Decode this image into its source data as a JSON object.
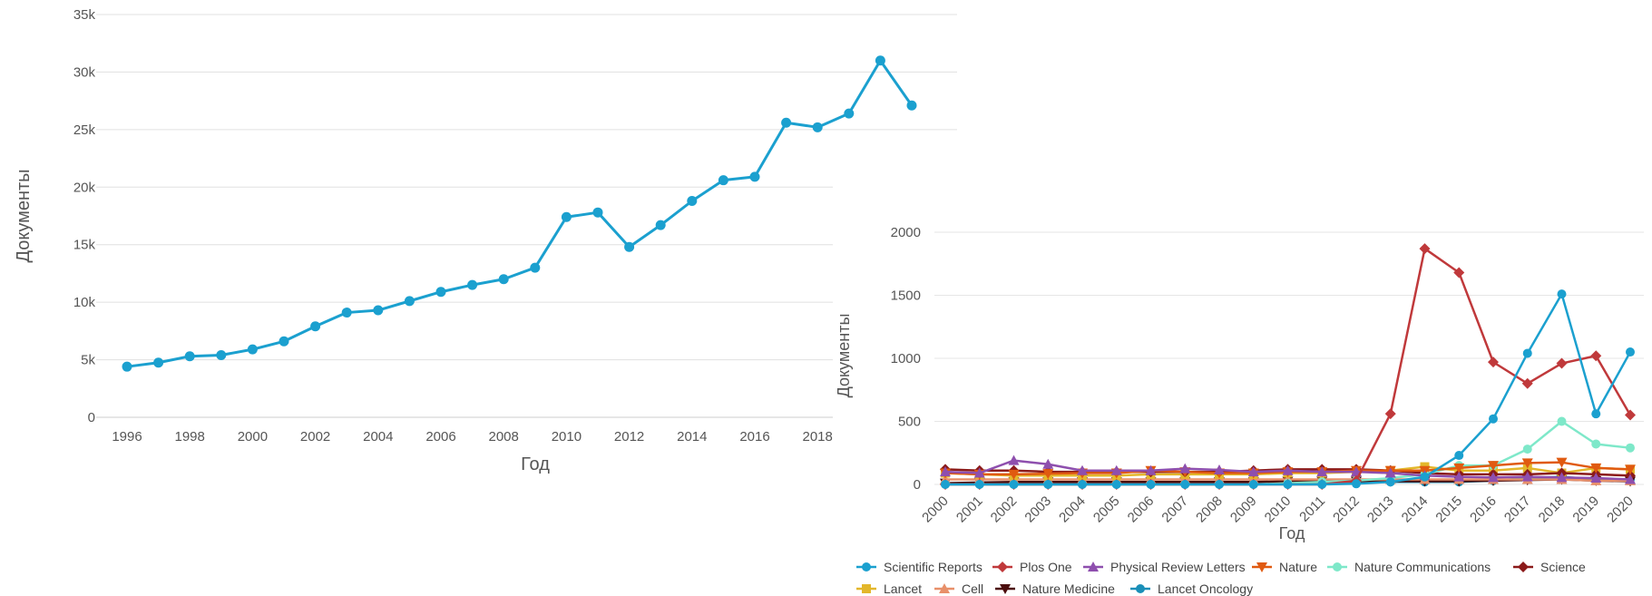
{
  "chart_data": [
    {
      "type": "line",
      "xlabel": "Год",
      "ylabel": "Документы",
      "ylim": [
        0,
        35000
      ],
      "y_ticks": [
        0,
        5000,
        10000,
        15000,
        20000,
        25000,
        30000,
        35000
      ],
      "y_tick_labels": [
        "0",
        "5k",
        "10k",
        "15k",
        "20k",
        "25k",
        "30k",
        "35k"
      ],
      "x_tick_labels": [
        "1996",
        "1998",
        "2000",
        "2002",
        "2004",
        "2006",
        "2008",
        "2010",
        "2012",
        "2014",
        "2016",
        "2018"
      ],
      "grid": true,
      "x": [
        1996,
        1997,
        1998,
        1999,
        2000,
        2001,
        2002,
        2003,
        2004,
        2005,
        2006,
        2007,
        2008,
        2009,
        2010,
        2011,
        2012,
        2013,
        2014,
        2015,
        2016,
        2017,
        2018,
        2019,
        2020
      ],
      "series": [
        {
          "color": "#1ba0cf",
          "values": [
            4400,
            4750,
            5300,
            5400,
            5900,
            6600,
            7900,
            9100,
            9300,
            10100,
            10900,
            11500,
            12000,
            13000,
            17400,
            17800,
            14800,
            16700,
            18800,
            20600,
            20900,
            25600,
            25200,
            26400,
            31000
          ]
        }
      ],
      "extra_point": {
        "x": 2021,
        "y": 27100
      }
    },
    {
      "type": "line",
      "xlabel": "Год",
      "ylabel": "Документы",
      "ylim": [
        0,
        2000
      ],
      "y_ticks": [
        0,
        500,
        1000,
        1500,
        2000
      ],
      "y_tick_labels": [
        "0",
        "500",
        "1000",
        "1500",
        "2000"
      ],
      "grid": true,
      "categories": [
        "2000",
        "2001",
        "2002",
        "2003",
        "2004",
        "2005",
        "2006",
        "2007",
        "2008",
        "2009",
        "2010",
        "2011",
        "2012",
        "2013",
        "2014",
        "2015",
        "2016",
        "2017",
        "2018",
        "2019",
        "2020"
      ],
      "legend_position": "bottom",
      "series": [
        {
          "name": "Scientific Reports",
          "color": "#1ba0cf",
          "marker": "circle",
          "values": [
            0,
            0,
            0,
            0,
            0,
            0,
            0,
            0,
            0,
            0,
            0,
            0,
            5,
            20,
            60,
            230,
            520,
            1040,
            1510,
            560,
            1050
          ]
        },
        {
          "name": "Plos One",
          "color": "#c0393b",
          "marker": "diamond",
          "values": [
            0,
            0,
            0,
            0,
            0,
            0,
            0,
            0,
            0,
            0,
            0,
            0,
            30,
            560,
            1870,
            1680,
            970,
            800,
            960,
            1020,
            550
          ]
        },
        {
          "name": "Physical Review Letters",
          "color": "#8e4fae",
          "marker": "triangle",
          "values": [
            100,
            90,
            190,
            160,
            110,
            110,
            110,
            125,
            115,
            100,
            110,
            100,
            100,
            90,
            70,
            60,
            55,
            60,
            55,
            50,
            40
          ]
        },
        {
          "name": "Nature",
          "color": "#e05a10",
          "marker": "triangle-down",
          "values": [
            90,
            80,
            80,
            85,
            90,
            90,
            110,
            100,
            90,
            90,
            100,
            100,
            110,
            110,
            110,
            130,
            150,
            170,
            175,
            130,
            120
          ]
        },
        {
          "name": "Nature Communications",
          "color": "#7ee8c9",
          "marker": "circle",
          "values": [
            0,
            0,
            0,
            0,
            0,
            0,
            0,
            0,
            0,
            0,
            10,
            20,
            30,
            50,
            80,
            150,
            150,
            280,
            500,
            320,
            290
          ]
        },
        {
          "name": "Science",
          "color": "#8b1a1a",
          "marker": "diamond",
          "values": [
            120,
            110,
            110,
            100,
            100,
            100,
            100,
            100,
            100,
            110,
            120,
            120,
            120,
            110,
            90,
            80,
            80,
            80,
            90,
            80,
            70
          ]
        },
        {
          "name": "Lancet",
          "color": "#e3b72b",
          "marker": "square",
          "values": [
            90,
            80,
            70,
            70,
            70,
            70,
            80,
            80,
            80,
            80,
            90,
            90,
            100,
            110,
            140,
            110,
            110,
            130,
            90,
            130,
            120
          ]
        },
        {
          "name": "Cell",
          "color": "#e8906a",
          "marker": "triangle",
          "values": [
            40,
            40,
            40,
            40,
            40,
            40,
            40,
            40,
            40,
            40,
            40,
            40,
            40,
            40,
            40,
            40,
            40,
            40,
            40,
            30,
            30
          ]
        },
        {
          "name": "Nature Medicine",
          "color": "#4b0d0d",
          "marker": "triangle-down",
          "values": [
            10,
            15,
            20,
            20,
            20,
            20,
            20,
            20,
            20,
            20,
            25,
            25,
            25,
            25,
            25,
            25,
            30,
            35,
            40,
            30,
            25
          ]
        },
        {
          "name": "Lancet Oncology",
          "color": "#1a8fb8",
          "marker": "circle",
          "values": [
            5,
            5,
            10,
            10,
            10,
            10,
            10,
            10,
            10,
            15,
            15,
            15,
            20,
            20,
            20,
            20,
            30,
            50,
            60,
            40,
            40
          ]
        }
      ]
    }
  ]
}
